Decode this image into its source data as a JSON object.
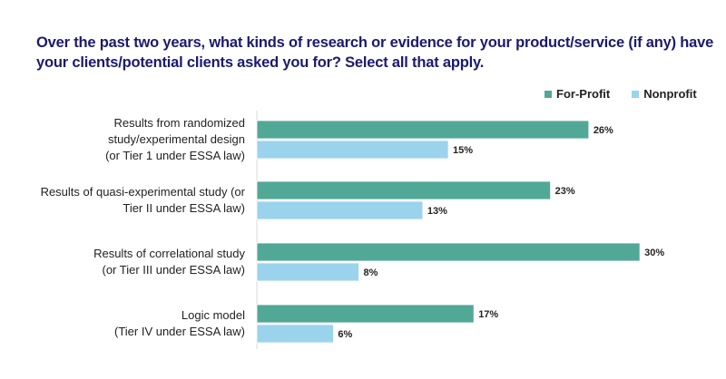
{
  "chart_data": {
    "type": "bar",
    "orientation": "horizontal",
    "title": "Over the past two years, what kinds of research or evidence for your product/service (if any) have your clients/potential clients asked you for? Select all that apply.",
    "categories": [
      [
        "Results from randomized",
        "study/experimental design",
        "(or Tier 1 under ESSA law)"
      ],
      [
        "Results of quasi-experimental study (or",
        "Tier II under ESSA law)"
      ],
      [
        "Results of correlational study",
        "(or Tier III under ESSA law)"
      ],
      [
        "Logic model",
        "(Tier IV under ESSA law)"
      ]
    ],
    "series": [
      {
        "name": "For-Profit",
        "color": "#52a896",
        "values": [
          26,
          23,
          30,
          17
        ]
      },
      {
        "name": "Nonprofit",
        "color": "#9bd3ec",
        "values": [
          15,
          13,
          8,
          6
        ]
      }
    ],
    "value_format": "%",
    "legend": "top-right",
    "grid": false
  }
}
